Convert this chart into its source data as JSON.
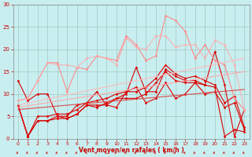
{
  "xlabel": "Vent moyen/en rafales ( km/h )",
  "xlim": [
    -0.5,
    23.5
  ],
  "ylim": [
    0,
    30
  ],
  "yticks": [
    0,
    5,
    10,
    15,
    20,
    25,
    30
  ],
  "xticks": [
    0,
    1,
    2,
    3,
    4,
    5,
    6,
    7,
    8,
    9,
    10,
    11,
    12,
    13,
    14,
    15,
    16,
    17,
    18,
    19,
    20,
    21,
    22,
    23
  ],
  "bg_color": "#c8eef0",
  "grid_color": "#a0c8c0",
  "lines": [
    {
      "x": [
        0,
        1,
        2,
        3,
        4,
        5,
        6,
        7,
        8,
        9,
        10,
        11,
        12,
        13,
        14,
        15,
        16,
        17,
        18,
        19,
        20,
        21,
        22,
        23
      ],
      "y": [
        7.5,
        0.5,
        4.0,
        4.0,
        5.0,
        5.0,
        7.5,
        8.0,
        10.5,
        7.5,
        9.0,
        10.0,
        16.0,
        10.5,
        10.5,
        15.5,
        14.0,
        13.0,
        13.0,
        12.0,
        11.5,
        0.5,
        2.0,
        1.5
      ],
      "color": "#dd0000",
      "lw": 0.8,
      "marker": "D",
      "ms": 1.5,
      "alpha": 1.0
    },
    {
      "x": [
        0,
        1,
        2,
        3,
        4,
        5,
        6,
        7,
        8,
        9,
        10,
        11,
        12,
        13,
        14,
        15,
        16,
        17,
        18,
        19,
        20,
        21,
        22,
        23
      ],
      "y": [
        13.0,
        8.5,
        10.0,
        10.0,
        5.0,
        4.5,
        5.5,
        7.5,
        7.5,
        7.5,
        7.0,
        10.5,
        11.5,
        8.0,
        9.0,
        12.5,
        9.0,
        10.0,
        12.5,
        12.0,
        19.5,
        12.0,
        0.5,
        6.5
      ],
      "color": "#dd0000",
      "lw": 0.8,
      "marker": "D",
      "ms": 1.5,
      "alpha": 1.0
    },
    {
      "x": [
        0,
        1,
        2,
        3,
        4,
        5,
        6,
        7,
        8,
        9,
        10,
        11,
        12,
        13,
        14,
        15,
        16,
        17,
        18,
        19,
        20,
        21,
        22,
        23
      ],
      "y": [
        7.5,
        0.5,
        4.0,
        4.0,
        4.5,
        4.5,
        5.5,
        7.5,
        7.0,
        8.0,
        9.0,
        9.0,
        9.0,
        10.0,
        12.5,
        15.0,
        13.0,
        12.5,
        12.5,
        10.0,
        10.5,
        7.0,
        8.0,
        2.0
      ],
      "color": "#dd0000",
      "lw": 0.8,
      "marker": "D",
      "ms": 1.5,
      "alpha": 1.0
    },
    {
      "x": [
        0,
        1,
        2,
        3,
        4,
        5,
        6,
        7,
        8,
        9,
        10,
        11,
        12,
        13,
        14,
        15,
        16,
        17,
        18,
        19,
        20,
        21,
        22,
        23
      ],
      "y": [
        7.5,
        0.5,
        5.0,
        5.0,
        5.5,
        5.5,
        6.5,
        8.0,
        8.5,
        9.0,
        10.0,
        10.5,
        10.5,
        11.5,
        13.5,
        16.5,
        14.5,
        13.5,
        14.0,
        13.0,
        12.0,
        8.0,
        9.5,
        2.5
      ],
      "color": "#dd0000",
      "lw": 0.8,
      "marker": "D",
      "ms": 1.5,
      "alpha": 1.0
    },
    {
      "x": [
        0,
        1,
        2,
        3,
        4,
        5,
        6,
        7,
        8,
        9,
        10,
        11,
        12,
        13,
        14,
        15,
        16,
        17,
        18,
        19,
        20,
        21,
        22,
        23
      ],
      "y": [
        8.5,
        9.0,
        13.0,
        17.0,
        17.0,
        10.5,
        16.0,
        15.5,
        18.5,
        18.0,
        17.5,
        23.0,
        21.0,
        17.5,
        18.5,
        27.5,
        26.5,
        24.0,
        18.0,
        21.0,
        17.5,
        16.5,
        9.0,
        6.5
      ],
      "color": "#ff8888",
      "lw": 0.8,
      "marker": "D",
      "ms": 1.5,
      "alpha": 1.0
    },
    {
      "x": [
        0,
        1,
        2,
        3,
        4,
        5,
        6,
        7,
        8,
        9,
        10,
        11,
        12,
        13,
        14,
        15,
        16,
        17,
        18,
        19,
        20,
        21,
        22,
        23
      ],
      "y": [
        8.5,
        9.0,
        13.0,
        17.0,
        16.5,
        16.5,
        16.0,
        18.0,
        18.5,
        18.0,
        16.5,
        22.5,
        20.5,
        20.0,
        23.0,
        23.0,
        20.5,
        21.0,
        21.0,
        18.0,
        22.0,
        21.0,
        16.5,
        6.5
      ],
      "color": "#ffaaaa",
      "lw": 0.8,
      "marker": "D",
      "ms": 1.5,
      "alpha": 0.85
    },
    {
      "x": [
        0,
        23
      ],
      "y": [
        7.5,
        18.0
      ],
      "color": "#ffbbbb",
      "lw": 0.9,
      "marker": null,
      "ms": 0,
      "alpha": 0.9
    },
    {
      "x": [
        0,
        23
      ],
      "y": [
        7.0,
        15.0
      ],
      "color": "#ffaaaa",
      "lw": 0.9,
      "marker": null,
      "ms": 0,
      "alpha": 0.9
    },
    {
      "x": [
        0,
        23
      ],
      "y": [
        6.5,
        11.0
      ],
      "color": "#dd4444",
      "lw": 0.9,
      "marker": null,
      "ms": 0,
      "alpha": 0.85
    }
  ]
}
